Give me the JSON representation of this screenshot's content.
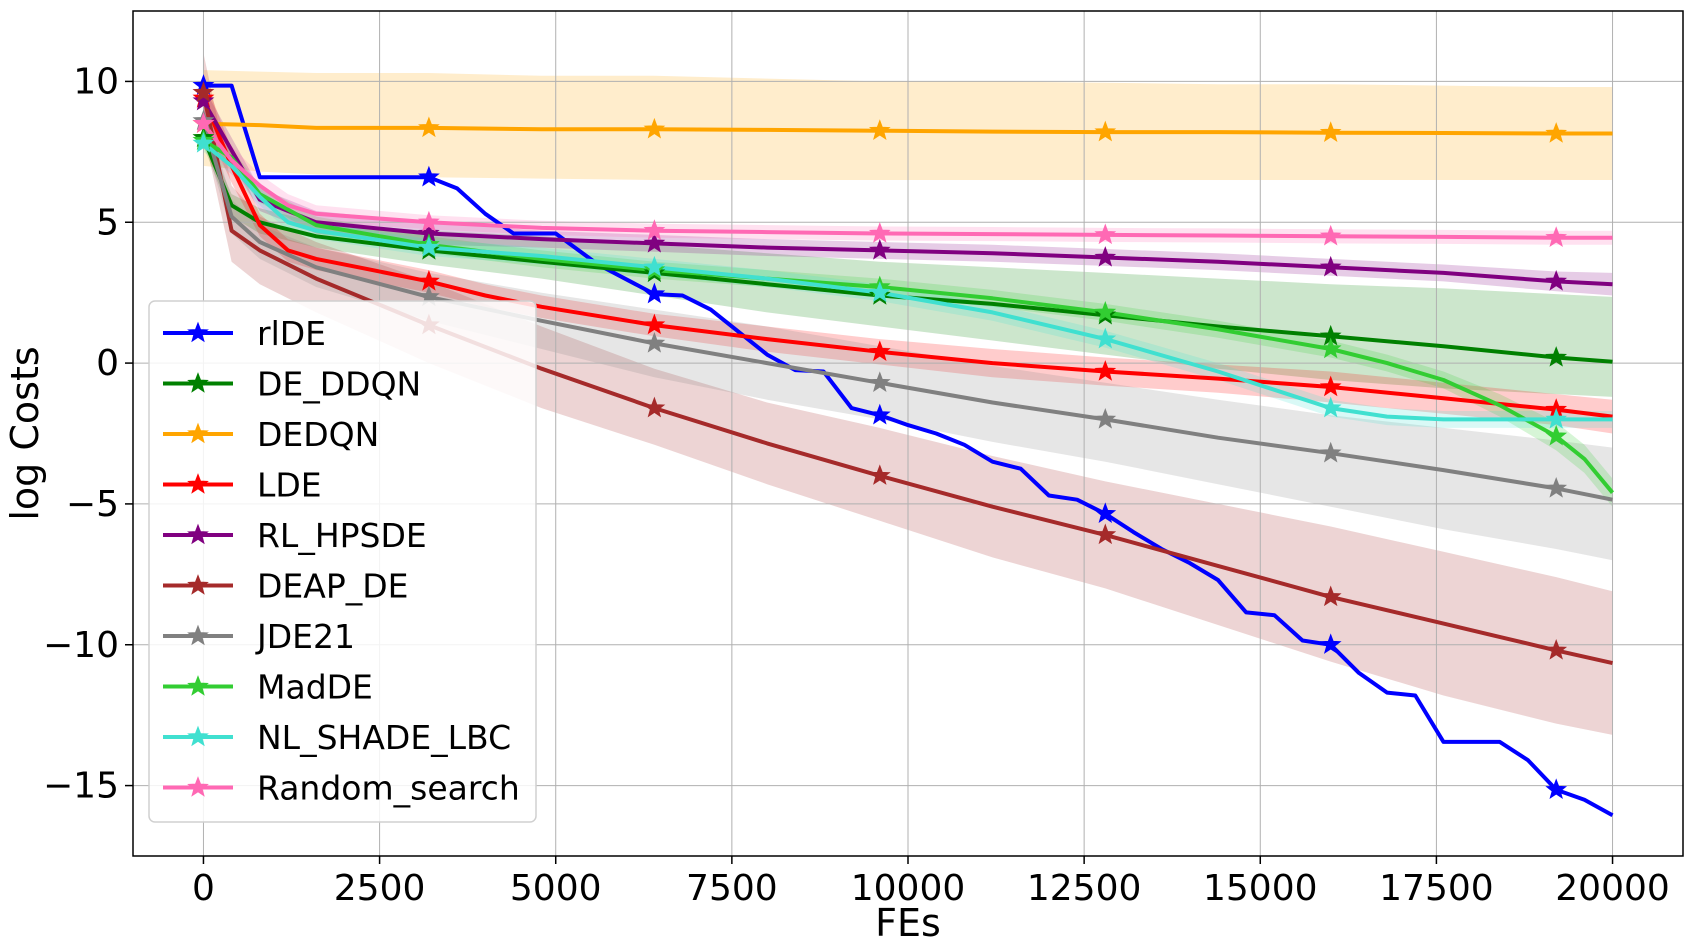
{
  "chart_data": {
    "type": "line",
    "title": "",
    "xlabel": "FEs",
    "ylabel": "log Costs",
    "xlim": [
      -1000,
      21000
    ],
    "ylim": [
      -17.5,
      12.5
    ],
    "xticks": [
      0,
      2500,
      5000,
      7500,
      10000,
      12500,
      15000,
      17500,
      20000
    ],
    "xtick_labels": [
      "0",
      "2500",
      "5000",
      "7500",
      "10000",
      "12500",
      "15000",
      "17500",
      "20000"
    ],
    "yticks": [
      10,
      5,
      0,
      -5,
      -10,
      -15
    ],
    "ytick_labels": [
      "10",
      "5",
      "0",
      "−5",
      "−10",
      "−15"
    ],
    "grid": true,
    "legend_position": "lower-left",
    "marker": "star",
    "marker_x": [
      0,
      3200,
      6400,
      9600,
      12800,
      16000,
      19200
    ],
    "series": [
      {
        "name": "rlDE",
        "color": "#0000ff",
        "x": [
          0,
          400,
          800,
          3200,
          3600,
          4000,
          4400,
          5000,
          5600,
          6400,
          6800,
          7200,
          7600,
          8000,
          8400,
          8800,
          9200,
          9600,
          10000,
          10400,
          10800,
          11200,
          11600,
          12000,
          12400,
          12800,
          13200,
          13600,
          14000,
          14400,
          14800,
          15200,
          15600,
          16000,
          16400,
          16800,
          17200,
          17600,
          18000,
          18400,
          18800,
          19200,
          19600,
          20000
        ],
        "y": [
          9.85,
          9.85,
          6.6,
          6.6,
          6.2,
          5.3,
          4.6,
          4.6,
          3.5,
          2.45,
          2.4,
          1.9,
          1.1,
          0.3,
          -0.25,
          -0.3,
          -1.6,
          -1.85,
          -2.2,
          -2.5,
          -2.9,
          -3.5,
          -3.75,
          -4.7,
          -4.85,
          -5.35,
          -6.0,
          -6.6,
          -7.1,
          -7.7,
          -8.85,
          -8.95,
          -9.85,
          -10.0,
          -11.0,
          -11.7,
          -11.8,
          -13.45,
          -13.45,
          -13.45,
          -14.1,
          -15.15,
          -15.5,
          -16.05
        ],
        "band_upper": [],
        "band_lower": []
      },
      {
        "name": "DE_DDQN",
        "color": "#008000",
        "x": [
          0,
          400,
          800,
          1600,
          3200,
          4800,
          6400,
          8000,
          9600,
          11200,
          12800,
          14400,
          16000,
          17600,
          19200,
          20000
        ],
        "y": [
          8.0,
          5.6,
          5.0,
          4.5,
          4.0,
          3.6,
          3.2,
          2.8,
          2.4,
          2.1,
          1.7,
          1.3,
          0.95,
          0.6,
          0.2,
          0.05
        ],
        "band_upper": [
          8.3,
          6.0,
          5.5,
          5.0,
          4.7,
          4.5,
          4.2,
          3.9,
          3.6,
          3.4,
          3.2,
          3.0,
          2.8,
          2.65,
          2.45,
          2.35
        ],
        "band_lower": [
          7.7,
          5.2,
          4.6,
          4.1,
          3.5,
          3.0,
          2.4,
          1.8,
          1.3,
          0.8,
          0.3,
          -0.2,
          -0.6,
          -0.9,
          -1.1,
          -1.2
        ]
      },
      {
        "name": "DEDQN",
        "color": "#ffa500",
        "x": [
          0,
          800,
          1600,
          3200,
          4800,
          6400,
          8000,
          9600,
          11200,
          12800,
          14400,
          16000,
          17600,
          19200,
          20000
        ],
        "y": [
          8.5,
          8.45,
          8.35,
          8.35,
          8.3,
          8.3,
          8.28,
          8.25,
          8.22,
          8.2,
          8.2,
          8.18,
          8.17,
          8.15,
          8.15
        ],
        "band_upper": [
          10.4,
          10.35,
          10.3,
          10.3,
          10.2,
          10.2,
          10.1,
          10.0,
          10.0,
          9.95,
          9.9,
          9.9,
          9.85,
          9.8,
          9.8
        ],
        "band_lower": [
          7.0,
          6.8,
          6.7,
          6.6,
          6.55,
          6.5,
          6.5,
          6.5,
          6.5,
          6.5,
          6.5,
          6.5,
          6.5,
          6.5,
          6.5
        ]
      },
      {
        "name": "LDE",
        "color": "#ff0000",
        "x": [
          0,
          400,
          800,
          1200,
          1600,
          2400,
          3200,
          4000,
          4800,
          6400,
          8000,
          9600,
          11200,
          12800,
          14400,
          16000,
          17600,
          19200,
          20000
        ],
        "y": [
          9.4,
          7.0,
          4.9,
          4.0,
          3.7,
          3.3,
          2.9,
          2.4,
          2.0,
          1.35,
          0.85,
          0.4,
          0.0,
          -0.3,
          -0.55,
          -0.85,
          -1.25,
          -1.65,
          -1.9
        ],
        "band_upper": [
          10.2,
          7.6,
          5.3,
          4.4,
          4.1,
          3.7,
          3.3,
          2.8,
          2.4,
          1.75,
          1.3,
          0.85,
          0.5,
          0.2,
          -0.05,
          -0.3,
          -0.7,
          -1.1,
          -1.3
        ],
        "band_lower": [
          8.6,
          6.4,
          4.5,
          3.6,
          3.3,
          2.9,
          2.5,
          2.0,
          1.6,
          0.95,
          0.4,
          -0.05,
          -0.5,
          -0.8,
          -1.05,
          -1.4,
          -1.8,
          -2.2,
          -2.5
        ]
      },
      {
        "name": "RL_HPSDE",
        "color": "#800080",
        "x": [
          0,
          800,
          1600,
          3200,
          4800,
          6400,
          8000,
          9600,
          11200,
          12800,
          14400,
          16000,
          17600,
          19200,
          20000
        ],
        "y": [
          9.3,
          5.8,
          5.0,
          4.6,
          4.4,
          4.25,
          4.1,
          4.0,
          3.9,
          3.75,
          3.6,
          3.4,
          3.2,
          2.9,
          2.8
        ],
        "band_upper": [
          9.8,
          6.2,
          5.4,
          5.0,
          4.7,
          4.55,
          4.4,
          4.3,
          4.2,
          4.05,
          3.9,
          3.7,
          3.5,
          3.25,
          3.2
        ],
        "band_lower": [
          8.8,
          5.4,
          4.6,
          4.2,
          4.1,
          3.95,
          3.8,
          3.7,
          3.6,
          3.45,
          3.3,
          3.1,
          2.9,
          2.55,
          2.4
        ]
      },
      {
        "name": "DEAP_DE",
        "color": "#a52a2a",
        "x": [
          0,
          400,
          800,
          1600,
          3200,
          4800,
          6400,
          8000,
          9600,
          11200,
          12800,
          14400,
          16000,
          17600,
          19200,
          20000
        ],
        "y": [
          9.6,
          4.7,
          4.0,
          3.0,
          1.35,
          -0.2,
          -1.6,
          -2.85,
          -4.0,
          -5.1,
          -6.1,
          -7.2,
          -8.3,
          -9.25,
          -10.2,
          -10.65
        ],
        "band_upper": [
          11.0,
          6.3,
          5.2,
          4.3,
          2.9,
          1.3,
          -0.2,
          -1.4,
          -2.3,
          -3.3,
          -4.2,
          -5.0,
          -5.8,
          -6.7,
          -7.6,
          -8.1
        ],
        "band_lower": [
          8.2,
          3.6,
          2.8,
          1.8,
          0.0,
          -1.6,
          -2.9,
          -4.3,
          -5.6,
          -6.9,
          -8.0,
          -9.3,
          -10.6,
          -11.8,
          -12.8,
          -13.2
        ]
      },
      {
        "name": "JDE21",
        "color": "#808080",
        "x": [
          0,
          400,
          800,
          1600,
          3200,
          4800,
          6400,
          8000,
          9600,
          11200,
          12800,
          14400,
          16000,
          17600,
          19200,
          20000
        ],
        "y": [
          8.6,
          5.2,
          4.3,
          3.4,
          2.35,
          1.5,
          0.7,
          0.0,
          -0.7,
          -1.4,
          -2.0,
          -2.65,
          -3.2,
          -3.8,
          -4.45,
          -4.85
        ],
        "band_upper": [
          9.2,
          5.8,
          4.9,
          4.1,
          3.2,
          2.5,
          1.9,
          1.3,
          0.6,
          -0.1,
          -0.7,
          -1.3,
          -1.85,
          -2.3,
          -2.75,
          -3.0
        ],
        "band_lower": [
          8.0,
          4.6,
          3.7,
          2.7,
          1.5,
          0.5,
          -0.5,
          -1.3,
          -2.0,
          -2.8,
          -3.5,
          -4.3,
          -5.1,
          -5.9,
          -6.6,
          -7.0
        ]
      },
      {
        "name": "MadDE",
        "color": "#32cd32",
        "x": [
          0,
          400,
          800,
          1600,
          3200,
          4800,
          6400,
          8000,
          9600,
          11200,
          12800,
          14400,
          16000,
          16800,
          17600,
          18400,
          19200,
          19600,
          20000
        ],
        "y": [
          7.9,
          7.3,
          6.0,
          4.9,
          4.2,
          3.7,
          3.3,
          3.0,
          2.7,
          2.3,
          1.8,
          1.2,
          0.5,
          0.0,
          -0.6,
          -1.5,
          -2.6,
          -3.4,
          -4.6
        ],
        "band_upper": [
          8.2,
          7.6,
          6.3,
          5.2,
          4.5,
          4.0,
          3.6,
          3.3,
          3.0,
          2.6,
          2.1,
          1.5,
          0.8,
          0.3,
          -0.3,
          -1.1,
          -2.1,
          -2.9,
          -4.1
        ],
        "band_lower": [
          7.6,
          7.0,
          5.7,
          4.6,
          3.9,
          3.4,
          3.0,
          2.7,
          2.4,
          2.0,
          1.5,
          0.9,
          0.2,
          -0.3,
          -0.9,
          -1.9,
          -3.1,
          -3.9,
          -5.1
        ]
      },
      {
        "name": "NL_SHADE_LBC",
        "color": "#40e0d0",
        "x": [
          0,
          400,
          800,
          1200,
          1600,
          3200,
          4800,
          6400,
          8000,
          9600,
          11200,
          12800,
          14400,
          16000,
          16800,
          17600,
          18400,
          19200,
          20000
        ],
        "y": [
          7.8,
          7.0,
          5.9,
          5.0,
          4.7,
          4.1,
          3.8,
          3.4,
          3.0,
          2.5,
          1.8,
          0.85,
          -0.3,
          -1.6,
          -1.9,
          -2.0,
          -2.0,
          -2.0,
          -2.0
        ],
        "band_upper": [
          8.1,
          7.3,
          6.2,
          5.3,
          5.0,
          4.4,
          4.1,
          3.7,
          3.3,
          2.8,
          2.1,
          1.15,
          0.0,
          -1.3,
          -1.6,
          -1.7,
          -1.7,
          -1.7,
          -1.7
        ],
        "band_lower": [
          7.5,
          6.7,
          5.6,
          4.7,
          4.4,
          3.8,
          3.5,
          3.1,
          2.7,
          2.2,
          1.5,
          0.55,
          -0.6,
          -1.9,
          -2.2,
          -2.3,
          -2.3,
          -2.3,
          -2.3
        ]
      },
      {
        "name": "Random_search",
        "color": "#ff69b4",
        "x": [
          0,
          400,
          800,
          1200,
          1600,
          3200,
          4800,
          6400,
          8000,
          9600,
          11200,
          12800,
          14400,
          16000,
          17600,
          19200,
          20000
        ],
        "y": [
          8.5,
          7.2,
          6.3,
          5.6,
          5.3,
          5.0,
          4.8,
          4.7,
          4.65,
          4.6,
          4.58,
          4.55,
          4.53,
          4.5,
          4.48,
          4.45,
          4.45
        ],
        "band_upper": [
          9.3,
          7.7,
          6.7,
          6.0,
          5.6,
          5.25,
          5.05,
          4.95,
          4.9,
          4.85,
          4.83,
          4.8,
          4.78,
          4.75,
          4.73,
          4.7,
          4.7
        ],
        "band_lower": [
          7.7,
          6.7,
          5.9,
          5.2,
          5.0,
          4.75,
          4.55,
          4.45,
          4.4,
          4.35,
          4.33,
          4.3,
          4.28,
          4.25,
          4.23,
          4.2,
          4.2
        ]
      }
    ]
  }
}
